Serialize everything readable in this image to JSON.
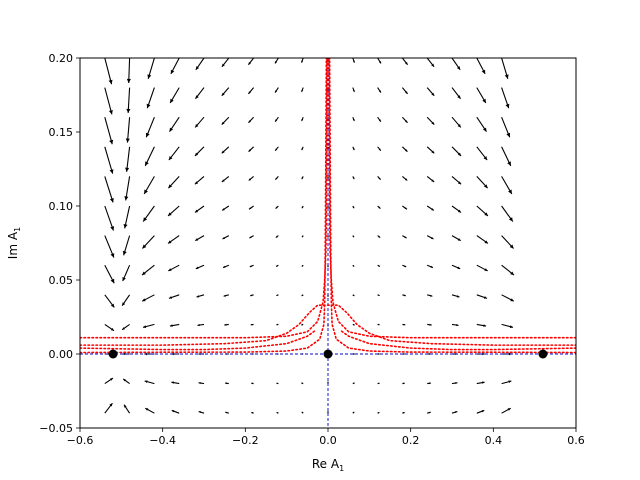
{
  "chart_data": {
    "type": "quiver",
    "title": "",
    "xlabel": "Re A",
    "xlabel_sub": "1",
    "ylabel": "Im A",
    "ylabel_sub": "1",
    "xlim": [
      -0.6,
      0.6
    ],
    "ylim": [
      -0.05,
      0.2
    ],
    "xticks": [
      -0.6,
      -0.4,
      -0.2,
      0.0,
      0.2,
      0.4,
      0.6
    ],
    "xtick_labels": [
      "−0.6",
      "−0.4",
      "−0.2",
      "0.0",
      "0.2",
      "0.4",
      "0.6"
    ],
    "yticks": [
      -0.05,
      0.0,
      0.05,
      0.1,
      0.15,
      0.2
    ],
    "ytick_labels": [
      "−0.05",
      "0.00",
      "0.05",
      "0.10",
      "0.15",
      "0.20"
    ],
    "grid": false,
    "quiver_grid": {
      "x_start": -0.54,
      "x_step": 0.06,
      "x_count": 17,
      "y_start": -0.04,
      "y_step": 0.02,
      "y_count": 13
    },
    "fixed_points": [
      {
        "x": -0.52,
        "y": 0.0
      },
      {
        "x": 0.0,
        "y": 0.0
      },
      {
        "x": 0.52,
        "y": 0.0
      }
    ],
    "reference_lines": [
      {
        "orientation": "horizontal",
        "value": 0.0,
        "color": "#0000cc",
        "style": "dashed"
      },
      {
        "orientation": "vertical",
        "value": 0.0,
        "color": "#0000cc",
        "style": "dashed"
      }
    ],
    "trajectories": [
      {
        "color": "#ff0000",
        "style": "dotted",
        "points": [
          [
            -0.6,
            0.011
          ],
          [
            -0.4,
            0.011
          ],
          [
            -0.2,
            0.011
          ],
          [
            -0.1,
            0.012
          ],
          [
            -0.05,
            0.015
          ],
          [
            -0.025,
            0.022
          ],
          [
            -0.012,
            0.035
          ],
          [
            -0.008,
            0.05
          ],
          [
            -0.005,
            0.07
          ],
          [
            -0.004,
            0.1
          ],
          [
            -0.003,
            0.15
          ],
          [
            -0.002,
            0.2
          ]
        ]
      },
      {
        "color": "#ff0000",
        "style": "dotted",
        "points": [
          [
            0.6,
            0.011
          ],
          [
            0.4,
            0.011
          ],
          [
            0.2,
            0.011
          ],
          [
            0.1,
            0.012
          ],
          [
            0.05,
            0.015
          ],
          [
            0.025,
            0.022
          ],
          [
            0.012,
            0.035
          ],
          [
            0.008,
            0.05
          ],
          [
            0.005,
            0.07
          ],
          [
            0.004,
            0.1
          ],
          [
            0.003,
            0.15
          ],
          [
            0.002,
            0.2
          ]
        ]
      },
      {
        "color": "#ff0000",
        "style": "dotted",
        "points": [
          [
            -0.6,
            0.004
          ],
          [
            -0.5,
            0.0035
          ],
          [
            -0.4,
            0.003
          ],
          [
            -0.3,
            0.003
          ],
          [
            -0.2,
            0.004
          ],
          [
            -0.1,
            0.007
          ],
          [
            -0.05,
            0.012
          ],
          [
            -0.03,
            0.016
          ]
        ]
      },
      {
        "color": "#ff0000",
        "style": "dotted",
        "points": [
          [
            0.6,
            0.004
          ],
          [
            0.5,
            0.0035
          ],
          [
            0.4,
            0.003
          ],
          [
            0.3,
            0.003
          ],
          [
            0.2,
            0.004
          ],
          [
            0.1,
            0.007
          ],
          [
            0.05,
            0.012
          ],
          [
            0.03,
            0.016
          ]
        ]
      },
      {
        "color": "#ff0000",
        "style": "dotted",
        "points": [
          [
            -0.6,
            0.006
          ],
          [
            -0.4,
            0.006
          ],
          [
            -0.25,
            0.007
          ],
          [
            -0.15,
            0.009
          ],
          [
            -0.1,
            0.014
          ],
          [
            -0.07,
            0.02
          ],
          [
            -0.045,
            0.028
          ],
          [
            -0.025,
            0.033
          ],
          [
            0.0,
            0.033
          ],
          [
            0.025,
            0.033
          ],
          [
            0.045,
            0.028
          ],
          [
            0.07,
            0.02
          ],
          [
            0.1,
            0.014
          ],
          [
            0.15,
            0.009
          ],
          [
            0.25,
            0.007
          ],
          [
            0.4,
            0.006
          ],
          [
            0.6,
            0.006
          ]
        ]
      },
      {
        "color": "#ff0000",
        "style": "dotted",
        "points": [
          [
            -0.6,
            0.001
          ],
          [
            -0.4,
            0.0012
          ],
          [
            -0.2,
            0.0013
          ],
          [
            -0.1,
            0.002
          ],
          [
            -0.05,
            0.004
          ],
          [
            -0.02,
            0.01
          ],
          [
            -0.01,
            0.02
          ],
          [
            -0.008,
            0.035
          ],
          [
            -0.007,
            0.06
          ],
          [
            -0.006,
            0.1
          ],
          [
            -0.005,
            0.15
          ],
          [
            -0.004,
            0.2
          ]
        ]
      },
      {
        "color": "#ff0000",
        "style": "dotted",
        "points": [
          [
            0.6,
            0.001
          ],
          [
            0.4,
            0.0012
          ],
          [
            0.2,
            0.0013
          ],
          [
            0.1,
            0.002
          ],
          [
            0.05,
            0.004
          ],
          [
            0.02,
            0.01
          ],
          [
            0.01,
            0.02
          ],
          [
            0.008,
            0.035
          ],
          [
            0.007,
            0.06
          ],
          [
            0.006,
            0.1
          ],
          [
            0.005,
            0.15
          ],
          [
            0.004,
            0.2
          ]
        ]
      }
    ]
  }
}
